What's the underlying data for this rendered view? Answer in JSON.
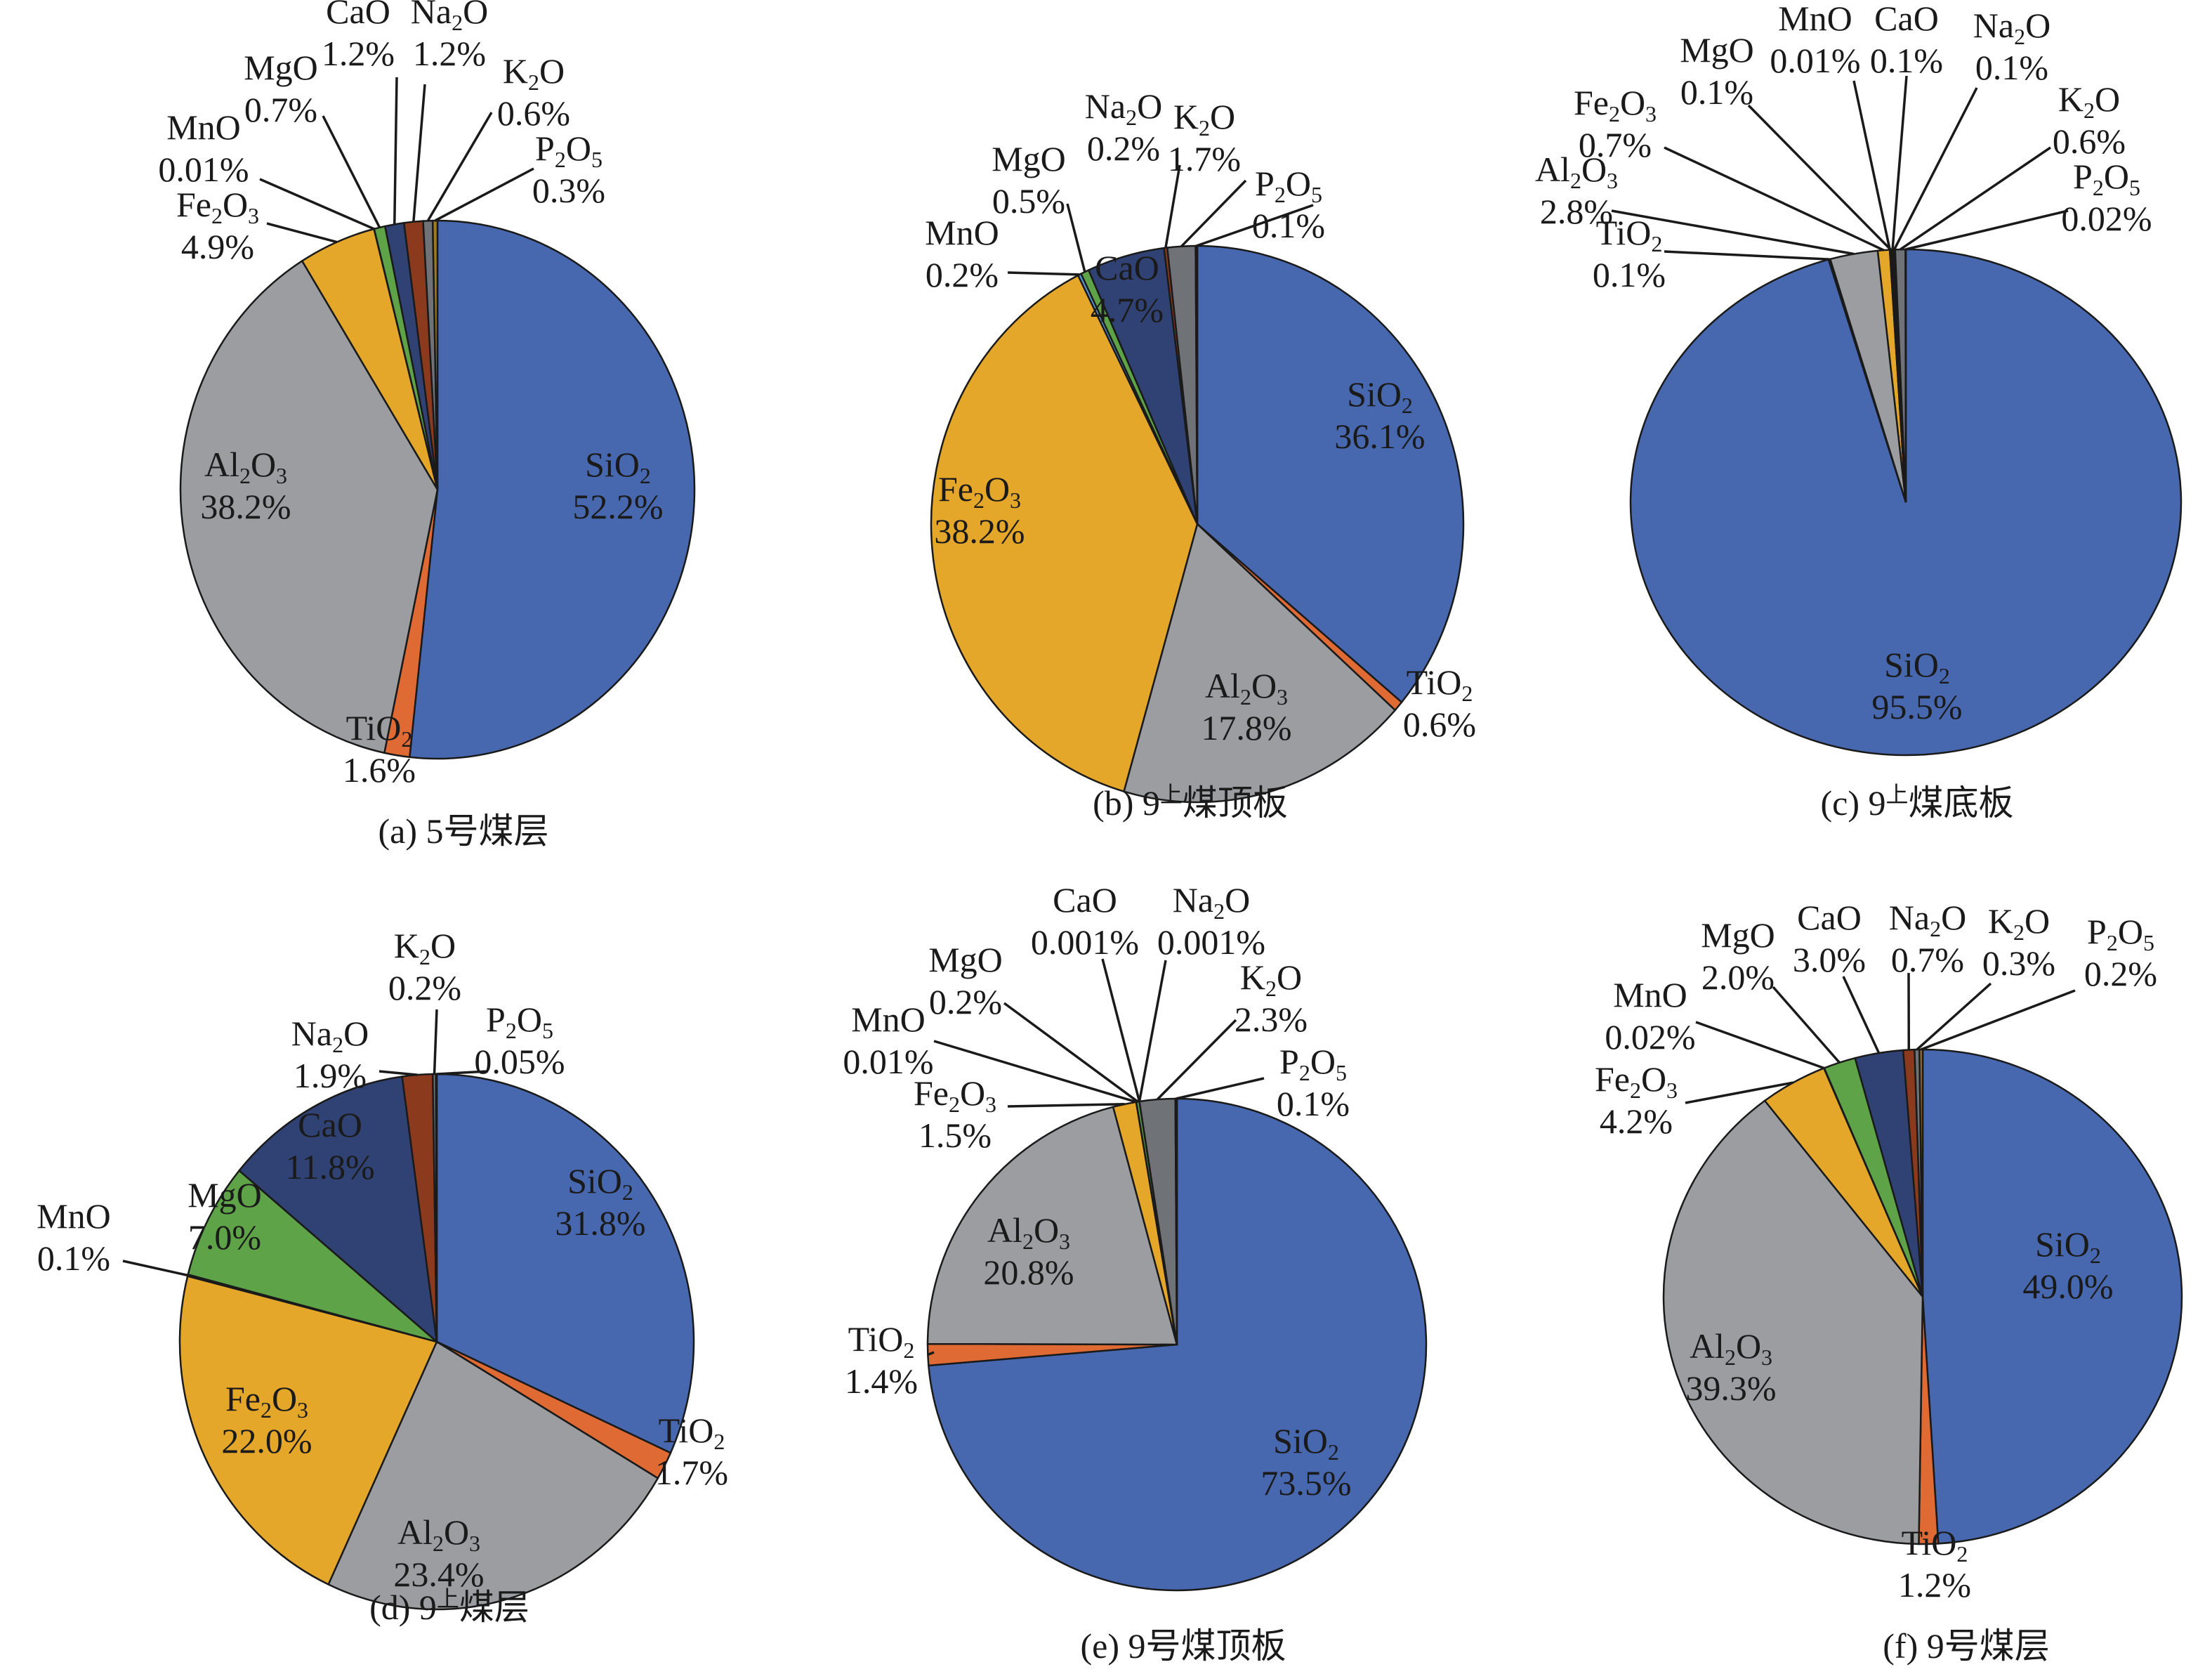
{
  "colors": {
    "SiO2": "#4767AE",
    "TiO2": "#E06A34",
    "Al2O3": "#9B9DA0",
    "Fe2O3": "#E4A72A",
    "MnO": "#5B9BD5",
    "MgO": "#5EA347",
    "CaO": "#2F4273",
    "Na2O": "#8B3A1E",
    "K2O": "#6F7276",
    "P2O5": "#9E7B1E"
  },
  "chart_data": [
    {
      "type": "pie",
      "id": "a",
      "title": "(a) 5号煤层",
      "title_prefix": "(a) 5",
      "title_suffix": "号煤层",
      "title_sup": "",
      "categories": [
        "SiO2",
        "TiO2",
        "Al2O3",
        "Fe2O3",
        "MnO",
        "MgO",
        "CaO",
        "Na2O",
        "K2O",
        "P2O5"
      ],
      "values": [
        52.2,
        1.6,
        38.2,
        4.9,
        0.01,
        0.7,
        1.2,
        1.2,
        0.6,
        0.3
      ],
      "labels": [
        "52.2%",
        "1.6%",
        "38.2%",
        "4.9%",
        "0.01%",
        "0.7%",
        "1.2%",
        "1.2%",
        "0.6%",
        "0.3%"
      ],
      "start": "12 o'clock, clockwise"
    },
    {
      "type": "pie",
      "id": "b",
      "title": "(b) 9上煤顶板",
      "title_prefix": "(b) 9",
      "title_suffix": "煤顶板",
      "title_sup": "上",
      "categories": [
        "SiO2",
        "TiO2",
        "Al2O3",
        "Fe2O3",
        "MnO",
        "MgO",
        "CaO",
        "Na2O",
        "K2O",
        "P2O5"
      ],
      "values": [
        36.1,
        0.6,
        17.8,
        38.2,
        0.2,
        0.5,
        4.7,
        0.2,
        1.7,
        0.1
      ],
      "labels": [
        "36.1%",
        "0.6%",
        "17.8%",
        "38.2%",
        "0.2%",
        "0.5%",
        "4.7%",
        "0.2%",
        "1.7%",
        "0.1%"
      ],
      "start": "12 o'clock, clockwise"
    },
    {
      "type": "pie",
      "id": "c",
      "title": "(c) 9上煤底板",
      "title_prefix": "(c) 9",
      "title_suffix": "煤底板",
      "title_sup": "上",
      "categories": [
        "SiO2",
        "TiO2",
        "Al2O3",
        "Fe2O3",
        "MnO",
        "MgO",
        "CaO",
        "Na2O",
        "K2O",
        "P2O5"
      ],
      "values": [
        95.5,
        0.1,
        2.8,
        0.7,
        0.01,
        0.1,
        0.1,
        0.1,
        0.6,
        0.02
      ],
      "labels": [
        "95.5%",
        "0.1%",
        "2.8%",
        "0.7%",
        "0.01%",
        "0.1%",
        "0.1%",
        "0.1%",
        "0.6%",
        "0.02%"
      ],
      "start": "12 o'clock, clockwise"
    },
    {
      "type": "pie",
      "id": "d",
      "title": "(d) 9上煤层",
      "title_prefix": "(d) 9",
      "title_suffix": "煤层",
      "title_sup": "上",
      "categories": [
        "SiO2",
        "TiO2",
        "Al2O3",
        "Fe2O3",
        "MnO",
        "MgO",
        "CaO",
        "Na2O",
        "K2O",
        "P2O5"
      ],
      "values": [
        31.8,
        1.7,
        23.4,
        22.0,
        0.1,
        7.0,
        11.8,
        1.9,
        0.2,
        0.05
      ],
      "labels": [
        "31.8%",
        "1.7%",
        "23.4%",
        "22.0%",
        "0.1%",
        "7.0%",
        "11.8%",
        "1.9%",
        "0.2%",
        "0.05%"
      ],
      "start": "12 o'clock, clockwise"
    },
    {
      "type": "pie",
      "id": "e",
      "title": "(e) 9号煤顶板",
      "title_prefix": "(e) 9",
      "title_suffix": "号煤顶板",
      "title_sup": "",
      "categories": [
        "SiO2",
        "TiO2",
        "Al2O3",
        "Fe2O3",
        "MnO",
        "MgO",
        "CaO",
        "Na2O",
        "K2O",
        "P2O5"
      ],
      "values": [
        73.5,
        1.4,
        20.8,
        1.5,
        0.01,
        0.2,
        0.001,
        0.001,
        2.3,
        0.1
      ],
      "labels": [
        "73.5%",
        "1.4%",
        "20.8%",
        "1.5%",
        "0.01%",
        "0.2%",
        "0.001%",
        "0.001%",
        "2.3%",
        "0.1%"
      ],
      "start": "12 o'clock, clockwise"
    },
    {
      "type": "pie",
      "id": "f",
      "title": "(f) 9号煤层",
      "title_prefix": "(f) 9",
      "title_suffix": "号煤层",
      "title_sup": "",
      "categories": [
        "SiO2",
        "TiO2",
        "Al2O3",
        "Fe2O3",
        "MnO",
        "MgO",
        "CaO",
        "Na2O",
        "K2O",
        "P2O5"
      ],
      "values": [
        49.0,
        1.2,
        39.3,
        4.2,
        0.02,
        2.0,
        3.0,
        0.7,
        0.3,
        0.2
      ],
      "labels": [
        "49.0%",
        "1.2%",
        "39.3%",
        "4.2%",
        "0.02%",
        "2.0%",
        "3.0%",
        "0.7%",
        "0.3%",
        "0.2%"
      ],
      "start": "12 o'clock, clockwise"
    }
  ],
  "formulas": {
    "SiO2": [
      "SiO",
      "2",
      ""
    ],
    "TiO2": [
      "TiO",
      "2",
      ""
    ],
    "Al2O3": [
      "Al",
      "2",
      "O",
      "3"
    ],
    "Fe2O3": [
      "Fe",
      "2",
      "O",
      "3"
    ],
    "MnO": [
      "MnO"
    ],
    "MgO": [
      "MgO"
    ],
    "CaO": [
      "CaO"
    ],
    "Na2O": [
      "Na",
      "2",
      "O"
    ],
    "K2O": [
      "K",
      "2",
      "O"
    ],
    "P2O5": [
      "P",
      "2",
      "O",
      "5"
    ]
  }
}
